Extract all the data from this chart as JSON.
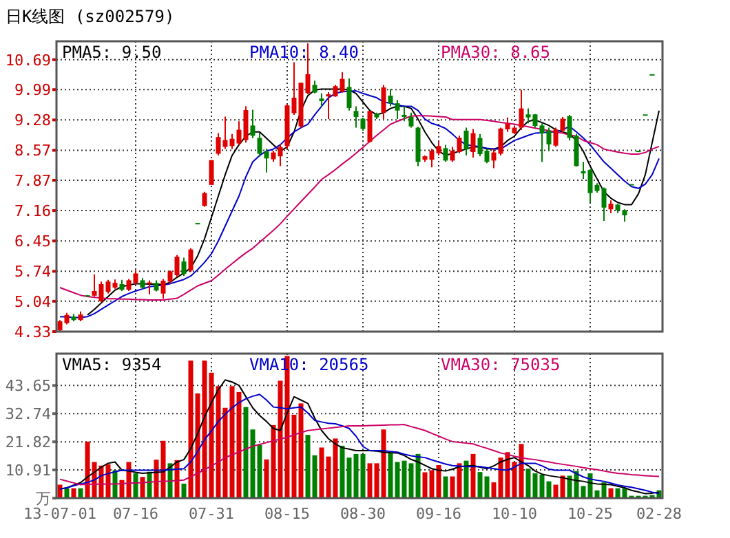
{
  "chart_data": [
    {
      "type": "candlestick",
      "title": "日K线图 (sz002579)",
      "legend": "top",
      "grid": true,
      "tick_labels": "y",
      "colors": [
        "#e00000",
        "#e00000",
        "#008000",
        "#e00000",
        "#008000",
        "#e00000",
        "#e00000",
        "#e00000",
        "#e00000",
        "#008000",
        "#e00000",
        "#e00000",
        "#008000",
        "#e00000",
        "#008000",
        "#e00000",
        "#e00000",
        "#e00000",
        "#008000",
        "#e00000",
        "#008000",
        "#e00000",
        "#e00000",
        "#e00000",
        "#e00000",
        "#e00000",
        "#e00000",
        "#e00000",
        "#008000",
        "#008000",
        "#008000",
        "#e00000",
        "#e00000",
        "#e00000",
        "#e00000",
        "#e00000",
        "#e00000",
        "#008000",
        "#008000",
        "#e00000",
        "#e00000",
        "#e00000",
        "#008000",
        "#008000",
        "#008000",
        "#e00000",
        "#008000",
        "#e00000",
        "#008000",
        "#008000",
        "#008000",
        "#008000",
        "#008000",
        "#e00000",
        "#e00000",
        "#e00000",
        "#008000",
        "#e00000",
        "#e00000",
        "#008000",
        "#e00000",
        "#008000",
        "#008000",
        "#e00000",
        "#e00000",
        "#e00000",
        "#e00000",
        "#e00000",
        "#008000",
        "#008000",
        "#008000",
        "#008000",
        "#e00000",
        "#e00000",
        "#008000",
        "#008000",
        "#008000",
        "#008000",
        "#008000",
        "#008000",
        "#e00000",
        "#008000",
        "#008000",
        "#008000",
        "#008000",
        "#008000",
        "#008000",
        null
      ],
      "categories": [
        null,
        null,
        null,
        null,
        null,
        null,
        null,
        null,
        null,
        null,
        null,
        null,
        null,
        null,
        null,
        null,
        null,
        null,
        null,
        null,
        null,
        null,
        null,
        null,
        null,
        null,
        null,
        null,
        null,
        null,
        null,
        null,
        null,
        null,
        null,
        null,
        null,
        null,
        null,
        null,
        null,
        null,
        null,
        null,
        null,
        null,
        null,
        null,
        null,
        null,
        null,
        null,
        null,
        null,
        null,
        null,
        null,
        null,
        null,
        null,
        null,
        null,
        null,
        null,
        null,
        null,
        null,
        null,
        null,
        null,
        null,
        null,
        null,
        null,
        null,
        null,
        null,
        null,
        null,
        null,
        null,
        null,
        null,
        null,
        null,
        null,
        null,
        null
      ],
      "ylim": [
        4.33,
        11.12
      ],
      "yticks": [
        4.33,
        5.04,
        5.74,
        6.45,
        7.16,
        7.87,
        8.57,
        9.28,
        9.99,
        10.69
      ],
      "ohlc": [
        [
          4.36,
          4.6,
          4.33,
          4.57
        ],
        [
          4.53,
          4.77,
          4.5,
          4.72
        ],
        [
          4.68,
          4.74,
          4.57,
          4.6
        ],
        [
          4.6,
          4.8,
          4.57,
          4.73
        ],
        [
          5.18,
          5.18,
          5.16,
          5.16
        ],
        [
          5.17,
          5.67,
          5.15,
          5.28
        ],
        [
          5.04,
          5.5,
          5.02,
          5.44
        ],
        [
          5.26,
          5.54,
          5.22,
          5.5
        ],
        [
          5.36,
          5.55,
          5.33,
          5.47
        ],
        [
          5.44,
          5.54,
          5.28,
          5.31
        ],
        [
          5.31,
          5.56,
          5.28,
          5.53
        ],
        [
          5.47,
          5.77,
          5.43,
          5.69
        ],
        [
          5.53,
          5.58,
          5.33,
          5.36
        ],
        [
          5.45,
          5.53,
          5.2,
          5.48
        ],
        [
          5.47,
          5.53,
          5.27,
          5.29
        ],
        [
          5.22,
          5.56,
          5.1,
          5.52
        ],
        [
          5.5,
          5.76,
          5.45,
          5.74
        ],
        [
          5.65,
          6.12,
          5.6,
          6.08
        ],
        [
          5.97,
          6.06,
          5.63,
          5.68
        ],
        [
          5.76,
          6.28,
          5.72,
          6.25
        ],
        [
          6.87,
          6.87,
          6.87,
          6.87
        ],
        [
          7.27,
          7.6,
          7.25,
          7.57
        ],
        [
          7.76,
          8.34,
          7.76,
          8.34
        ],
        [
          8.49,
          8.97,
          8.45,
          8.88
        ],
        [
          8.65,
          9.36,
          8.6,
          8.81
        ],
        [
          8.67,
          8.95,
          8.6,
          8.84
        ],
        [
          8.73,
          9.25,
          8.7,
          9.05
        ],
        [
          8.81,
          9.6,
          8.75,
          9.51
        ],
        [
          9.15,
          9.52,
          8.85,
          8.91
        ],
        [
          8.86,
          8.98,
          8.42,
          8.49
        ],
        [
          8.54,
          8.6,
          8.05,
          8.38
        ],
        [
          8.36,
          8.56,
          8.3,
          8.52
        ],
        [
          8.43,
          8.72,
          8.2,
          8.65
        ],
        [
          8.67,
          9.65,
          8.6,
          9.62
        ],
        [
          9.44,
          10.63,
          9.4,
          9.8
        ],
        [
          9.13,
          10.15,
          9.1,
          10.15
        ],
        [
          9.91,
          11.07,
          9.88,
          10.35
        ],
        [
          10.1,
          10.2,
          9.9,
          9.92
        ],
        [
          9.78,
          9.9,
          9.6,
          9.72
        ],
        [
          9.83,
          9.93,
          9.3,
          9.88
        ],
        [
          9.83,
          10.1,
          9.82,
          10.07
        ],
        [
          9.94,
          10.4,
          9.92,
          10.24
        ],
        [
          10.05,
          10.25,
          9.5,
          9.56
        ],
        [
          9.49,
          9.6,
          9.1,
          9.35
        ],
        [
          9.31,
          9.33,
          9.03,
          9.07
        ],
        [
          8.77,
          9.49,
          8.75,
          9.49
        ],
        [
          9.42,
          9.45,
          9.3,
          9.34
        ],
        [
          9.45,
          10.1,
          9.3,
          10.04
        ],
        [
          9.85,
          10.0,
          9.6,
          9.67
        ],
        [
          9.67,
          9.75,
          9.3,
          9.5
        ],
        [
          9.4,
          9.6,
          9.25,
          9.35
        ],
        [
          9.35,
          9.45,
          9.1,
          9.13
        ],
        [
          9.1,
          9.12,
          8.2,
          8.3
        ],
        [
          8.35,
          8.45,
          8.3,
          8.43
        ],
        [
          8.35,
          8.6,
          8.17,
          8.56
        ],
        [
          8.5,
          8.78,
          8.45,
          8.67
        ],
        [
          8.62,
          8.7,
          8.3,
          8.33
        ],
        [
          8.33,
          8.65,
          8.3,
          8.56
        ],
        [
          8.53,
          8.91,
          8.5,
          8.86
        ],
        [
          9.03,
          9.1,
          8.45,
          8.59
        ],
        [
          8.53,
          9.07,
          8.4,
          8.97
        ],
        [
          8.86,
          8.95,
          8.43,
          8.48
        ],
        [
          8.56,
          8.6,
          8.27,
          8.3
        ],
        [
          8.33,
          8.6,
          8.15,
          8.52
        ],
        [
          8.49,
          9.1,
          8.45,
          9.08
        ],
        [
          9.06,
          9.34,
          9.0,
          9.19
        ],
        [
          8.97,
          9.15,
          8.95,
          9.1
        ],
        [
          9.1,
          9.98,
          9.05,
          9.55
        ],
        [
          9.41,
          9.55,
          9.2,
          9.34
        ],
        [
          9.41,
          9.42,
          9.1,
          9.14
        ],
        [
          9.15,
          9.2,
          8.3,
          8.97
        ],
        [
          9.03,
          9.1,
          8.55,
          8.71
        ],
        [
          8.68,
          9.1,
          8.65,
          9.05
        ],
        [
          9.03,
          9.35,
          8.98,
          9.31
        ],
        [
          9.37,
          9.4,
          8.8,
          8.86
        ],
        [
          8.91,
          8.95,
          8.19,
          8.2
        ],
        [
          8.08,
          8.3,
          7.9,
          8.03
        ],
        [
          8.11,
          8.13,
          7.35,
          7.57
        ],
        [
          7.76,
          7.8,
          7.58,
          7.62
        ],
        [
          7.68,
          7.7,
          6.92,
          7.23
        ],
        [
          7.19,
          7.4,
          7.1,
          7.32
        ],
        [
          7.3,
          7.32,
          7.1,
          7.17
        ],
        [
          7.17,
          7.19,
          6.9,
          7.05
        ],
        [
          7.78,
          7.78,
          7.78,
          7.78
        ],
        [
          8.56,
          8.56,
          8.56,
          8.56
        ],
        [
          9.41,
          9.41,
          9.41,
          9.41
        ],
        [
          10.35,
          10.35,
          10.35,
          10.35
        ],
        null
      ],
      "series": [
        {
          "name": "PMA5: 9.50",
          "type": "line",
          "color": "#000000",
          "values": [
            null,
            null,
            null,
            null,
            4.72,
            4.85,
            5.0,
            5.15,
            5.3,
            5.38,
            5.42,
            5.45,
            5.45,
            5.44,
            5.44,
            5.43,
            5.48,
            5.6,
            5.7,
            5.82,
            6.1,
            6.5,
            7.0,
            7.5,
            8.0,
            8.45,
            8.7,
            8.9,
            9.0,
            9.0,
            8.85,
            8.7,
            8.55,
            8.65,
            9.0,
            9.5,
            9.85,
            9.98,
            10.0,
            10.0,
            10.0,
            10.0,
            9.98,
            9.9,
            9.7,
            9.5,
            9.4,
            9.45,
            9.55,
            9.6,
            9.6,
            9.55,
            9.3,
            9.0,
            8.75,
            8.55,
            8.45,
            8.5,
            8.55,
            8.6,
            8.65,
            8.65,
            8.6,
            8.6,
            8.65,
            8.8,
            8.9,
            9.1,
            9.25,
            9.28,
            9.22,
            9.15,
            9.05,
            9.0,
            8.95,
            8.8,
            8.55,
            8.2,
            7.9,
            7.6,
            7.45,
            7.35,
            7.3,
            7.3,
            7.55,
            8.0,
            8.75,
            9.5
          ]
        },
        {
          "name": "PMA10: 8.40",
          "type": "line",
          "color": "#0000cc",
          "values": [
            4.68,
            4.67,
            4.66,
            4.66,
            4.68,
            4.75,
            4.85,
            4.95,
            5.05,
            5.15,
            5.22,
            5.28,
            5.33,
            5.38,
            5.4,
            5.42,
            5.45,
            5.5,
            5.55,
            5.63,
            5.78,
            5.95,
            6.15,
            6.45,
            6.8,
            7.15,
            7.5,
            7.95,
            8.3,
            8.45,
            8.55,
            8.6,
            8.7,
            8.86,
            9.0,
            9.1,
            9.18,
            9.4,
            9.6,
            9.8,
            9.9,
            9.94,
            9.95,
            9.96,
            9.9,
            9.85,
            9.8,
            9.7,
            9.67,
            9.63,
            9.6,
            9.6,
            9.5,
            9.3,
            9.2,
            9.15,
            9.08,
            8.95,
            8.8,
            8.7,
            8.68,
            8.65,
            8.62,
            8.6,
            8.6,
            8.7,
            8.8,
            8.86,
            8.92,
            8.97,
            8.98,
            9.0,
            9.0,
            9.05,
            9.13,
            9.0,
            8.86,
            8.7,
            8.5,
            8.3,
            8.15,
            8.0,
            7.85,
            7.72,
            7.68,
            7.78,
            8.0,
            8.38
          ]
        },
        {
          "name": "PMA30: 8.65",
          "type": "line",
          "color": "#cc0066",
          "values": [
            5.36,
            5.3,
            5.24,
            5.18,
            5.15,
            5.13,
            5.12,
            5.1,
            5.1,
            5.09,
            5.09,
            5.08,
            5.08,
            5.07,
            5.07,
            5.07,
            5.09,
            5.11,
            5.2,
            5.3,
            5.4,
            5.46,
            5.52,
            5.65,
            5.79,
            5.92,
            6.05,
            6.17,
            6.28,
            6.42,
            6.56,
            6.7,
            6.85,
            7.03,
            7.2,
            7.37,
            7.54,
            7.71,
            7.89,
            8.0,
            8.12,
            8.25,
            8.37,
            8.5,
            8.64,
            8.78,
            8.92,
            9.05,
            9.18,
            9.25,
            9.31,
            9.37,
            9.38,
            9.38,
            9.37,
            9.36,
            9.35,
            9.29,
            9.29,
            9.29,
            9.29,
            9.29,
            9.27,
            9.25,
            9.22,
            9.2,
            9.18,
            9.15,
            9.12,
            9.09,
            9.06,
            9.03,
            9.0,
            8.97,
            8.93,
            8.9,
            8.8,
            8.75,
            8.7,
            8.6,
            8.56,
            8.53,
            8.5,
            8.48,
            8.48,
            8.52,
            8.6,
            8.66
          ]
        }
      ]
    },
    {
      "type": "bar",
      "legend": "top",
      "grid": true,
      "categories": [
        "13-07-01",
        null,
        null,
        null,
        null,
        null,
        null,
        null,
        null,
        null,
        null,
        "07-16",
        null,
        null,
        null,
        null,
        null,
        null,
        null,
        null,
        null,
        null,
        "07-31",
        null,
        null,
        null,
        null,
        null,
        null,
        null,
        null,
        null,
        null,
        "08-15",
        null,
        null,
        null,
        null,
        null,
        null,
        null,
        null,
        null,
        null,
        "08-30",
        null,
        null,
        null,
        null,
        null,
        null,
        null,
        null,
        null,
        null,
        "09-16",
        null,
        null,
        null,
        null,
        null,
        null,
        null,
        null,
        null,
        null,
        "10-10",
        null,
        null,
        null,
        null,
        null,
        null,
        null,
        null,
        null,
        null,
        "10-25",
        null,
        null,
        null,
        null,
        null,
        null,
        null,
        null,
        null,
        "02-28"
      ],
      "ylim": [
        0,
        56
      ],
      "yticks": [
        {
          "value": 0,
          "label": "万"
        },
        10.91,
        21.82,
        32.74,
        43.65
      ],
      "series": [
        {
          "type": "bar",
          "values": [
            5.2,
            3.8,
            3.8,
            3.8,
            21.9,
            14.0,
            12.6,
            13.1,
            10.8,
            7.0,
            14.0,
            9.6,
            8.2,
            10.2,
            14.9,
            22.2,
            13.5,
            14.7,
            5.6,
            53.3,
            40.6,
            53.3,
            48.6,
            43.4,
            35.0,
            43.4,
            41.1,
            35.3,
            26.6,
            20.6,
            15.0,
            28.3,
            45.5,
            55.1,
            32.3,
            36.7,
            24.5,
            16.6,
            19.6,
            16.1,
            23.1,
            20.3,
            15.7,
            17.1,
            17.1,
            13.5,
            13.5,
            26.6,
            17.5,
            14.0,
            14.5,
            13.5,
            17.1,
            10.0,
            10.8,
            12.8,
            8.4,
            8.4,
            13.5,
            14.5,
            17.1,
            10.1,
            8.4,
            6.1,
            15.7,
            17.8,
            14.0,
            21.0,
            11.4,
            9.6,
            9.1,
            6.5,
            5.2,
            8.7,
            8.7,
            10.5,
            4.7,
            9.6,
            3.0,
            6.1,
            3.8,
            3.8,
            3.8,
            0.9,
            0.9,
            0.9,
            1.2,
            3.0
          ],
          "colors": [
            "#e00000",
            "#008000",
            "#e00000",
            "#008000",
            "#e00000",
            "#e00000",
            "#e00000",
            "#e00000",
            "#008000",
            "#e00000",
            "#e00000",
            "#008000",
            "#e00000",
            "#008000",
            "#e00000",
            "#e00000",
            "#008000",
            "#e00000",
            "#008000",
            "#e00000",
            "#e00000",
            "#e00000",
            "#e00000",
            "#e00000",
            "#e00000",
            "#e00000",
            "#e00000",
            "#008000",
            "#008000",
            "#008000",
            "#e00000",
            "#e00000",
            "#e00000",
            "#e00000",
            "#e00000",
            "#e00000",
            "#008000",
            "#008000",
            "#e00000",
            "#e00000",
            "#e00000",
            "#008000",
            "#008000",
            "#008000",
            "#008000",
            "#e00000",
            "#e00000",
            "#e00000",
            "#008000",
            "#008000",
            "#008000",
            "#008000",
            "#008000",
            "#e00000",
            "#e00000",
            "#e00000",
            "#008000",
            "#e00000",
            "#e00000",
            "#008000",
            "#e00000",
            "#008000",
            "#008000",
            "#e00000",
            "#e00000",
            "#e00000",
            "#e00000",
            "#e00000",
            "#008000",
            "#008000",
            "#008000",
            "#008000",
            "#e00000",
            "#e00000",
            "#008000",
            "#008000",
            "#008000",
            "#008000",
            "#008000",
            "#008000",
            "#e00000",
            "#008000",
            "#008000",
            "#008000",
            "#008000",
            "#008000",
            "#008000",
            "#008000"
          ]
        },
        {
          "name": "VMA5: 9354",
          "type": "line",
          "color": "#000000",
          "values": [
            3.5,
            4,
            5,
            6,
            8.2,
            10,
            12,
            13.5,
            14,
            10.8,
            10.5,
            10,
            9.6,
            9.8,
            10,
            10.1,
            12,
            14,
            14.9,
            19.2,
            25,
            31.5,
            37,
            42,
            45.8,
            45,
            43.7,
            39.3,
            35,
            32,
            29.7,
            27,
            26.2,
            33,
            39.3,
            38,
            36.7,
            31,
            26.2,
            23,
            21,
            19.5,
            19,
            18.4,
            18.4,
            18.4,
            18.2,
            17.8,
            17.6,
            17.5,
            16.5,
            15,
            14,
            12.7,
            11.4,
            10.8,
            10.5,
            11.2,
            12.2,
            12.4,
            12.6,
            12,
            11.4,
            12.5,
            14,
            15,
            15.7,
            14,
            12.6,
            10.5,
            9.3,
            8.7,
            8.3,
            7.9,
            7.3,
            6.8,
            6.5,
            5.9,
            5.5,
            5.3,
            5.2,
            4.6,
            4.0,
            3.0,
            2.4,
            1.7,
            1.9,
            2.3
          ]
        },
        {
          "name": "VMA10: 20565",
          "type": "line",
          "color": "#0000cc",
          "values": [
            3.5,
            4,
            4.8,
            5.5,
            6.1,
            7,
            8.7,
            9.5,
            10.2,
            10.8,
            10.8,
            10.8,
            10.8,
            10.8,
            10.8,
            10.8,
            11,
            11.2,
            11.4,
            14,
            18,
            22.7,
            26,
            29.7,
            32.5,
            35,
            37,
            38.5,
            39.5,
            40.2,
            38,
            35.3,
            35,
            34.6,
            35,
            35.3,
            33,
            30.1,
            29.5,
            29,
            28.8,
            28,
            27,
            24,
            20,
            18.4,
            18.4,
            18.4,
            18.1,
            17.8,
            17,
            16.4,
            16,
            15.7,
            14.8,
            14,
            13.2,
            12.6,
            12.4,
            12.2,
            12.2,
            12.2,
            11.8,
            11.4,
            11,
            10.8,
            12,
            13.5,
            13.5,
            13.5,
            12.5,
            11.2,
            10.8,
            10.8,
            10.8,
            9.5,
            8.2,
            7.4,
            6.9,
            6.5,
            5.8,
            5.1,
            4.6,
            4.2,
            3.6,
            3,
            2.3,
            1.7
          ]
        },
        {
          "name": "VMA30: 75035",
          "type": "line",
          "color": "#cc0066",
          "values": [
            7.3,
            6.6,
            5.9,
            5.2,
            5.3,
            5.4,
            5.4,
            5.5,
            5.5,
            5.6,
            5.8,
            5.9,
            6.0,
            6.2,
            6.4,
            6.5,
            6.6,
            6.8,
            7.0,
            8.3,
            9.6,
            11,
            12.5,
            14,
            15.7,
            16.8,
            17.9,
            19,
            20.1,
            20.8,
            21.5,
            22.2,
            22.9,
            23.6,
            24.5,
            25.4,
            26.2,
            26.5,
            26.8,
            27.1,
            27.4,
            27.7,
            28,
            28,
            28,
            28.1,
            28.2,
            28.3,
            28.4,
            28.4,
            28.5,
            27.7,
            27,
            26.2,
            25.1,
            24,
            22.9,
            21.9,
            21.6,
            21.3,
            21,
            20.1,
            19.3,
            18.4,
            17.5,
            16.9,
            16.2,
            15.6,
            15.2,
            14.9,
            14.4,
            14,
            13.5,
            13.1,
            12.7,
            12.3,
            11.8,
            11.4,
            11,
            10.5,
            10,
            9.6,
            9.4,
            9.1,
            8.9,
            8.7,
            8.5,
            8.4
          ]
        }
      ]
    }
  ]
}
